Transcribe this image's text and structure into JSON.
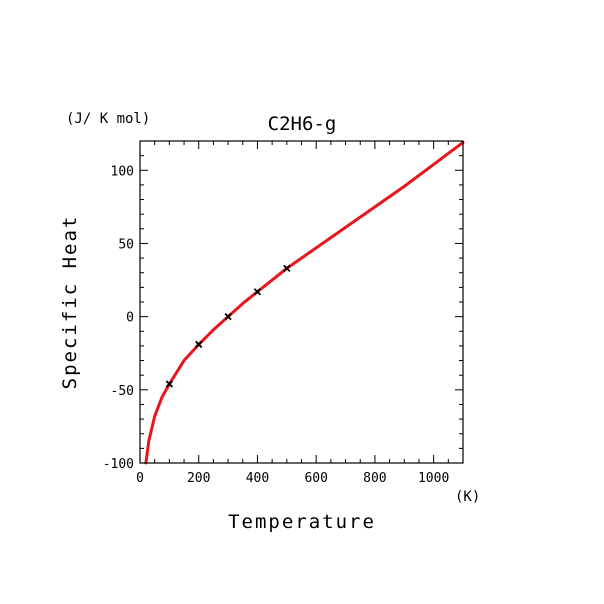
{
  "chart_data": {
    "type": "line",
    "title": "C2H6-g",
    "xlabel": "Temperature",
    "ylabel": "Specific Heat",
    "x_unit": "(K)",
    "y_unit": "(J/ K mol)",
    "xlim": [
      0,
      1100
    ],
    "ylim": [
      -100,
      120
    ],
    "x_ticks": [
      0,
      200,
      400,
      600,
      800,
      1000
    ],
    "y_ticks": [
      -100,
      -50,
      0,
      50,
      100
    ],
    "grid": false,
    "series": [
      {
        "color": "#e8151b",
        "x": [
          20,
          30,
          50,
          75,
          100,
          150,
          200,
          250,
          300,
          350,
          400,
          450,
          500,
          600,
          700,
          800,
          900,
          1000,
          1100
        ],
        "y": [
          -100,
          -85,
          -68,
          -55,
          -46,
          -30,
          -19,
          -9,
          0,
          9,
          17,
          25,
          33,
          47,
          61,
          75,
          89,
          104,
          119
        ]
      }
    ],
    "markers": {
      "symbol": "x",
      "x": [
        100,
        200,
        300,
        400,
        500
      ],
      "y": [
        -46,
        -19,
        0,
        17,
        33
      ]
    }
  }
}
